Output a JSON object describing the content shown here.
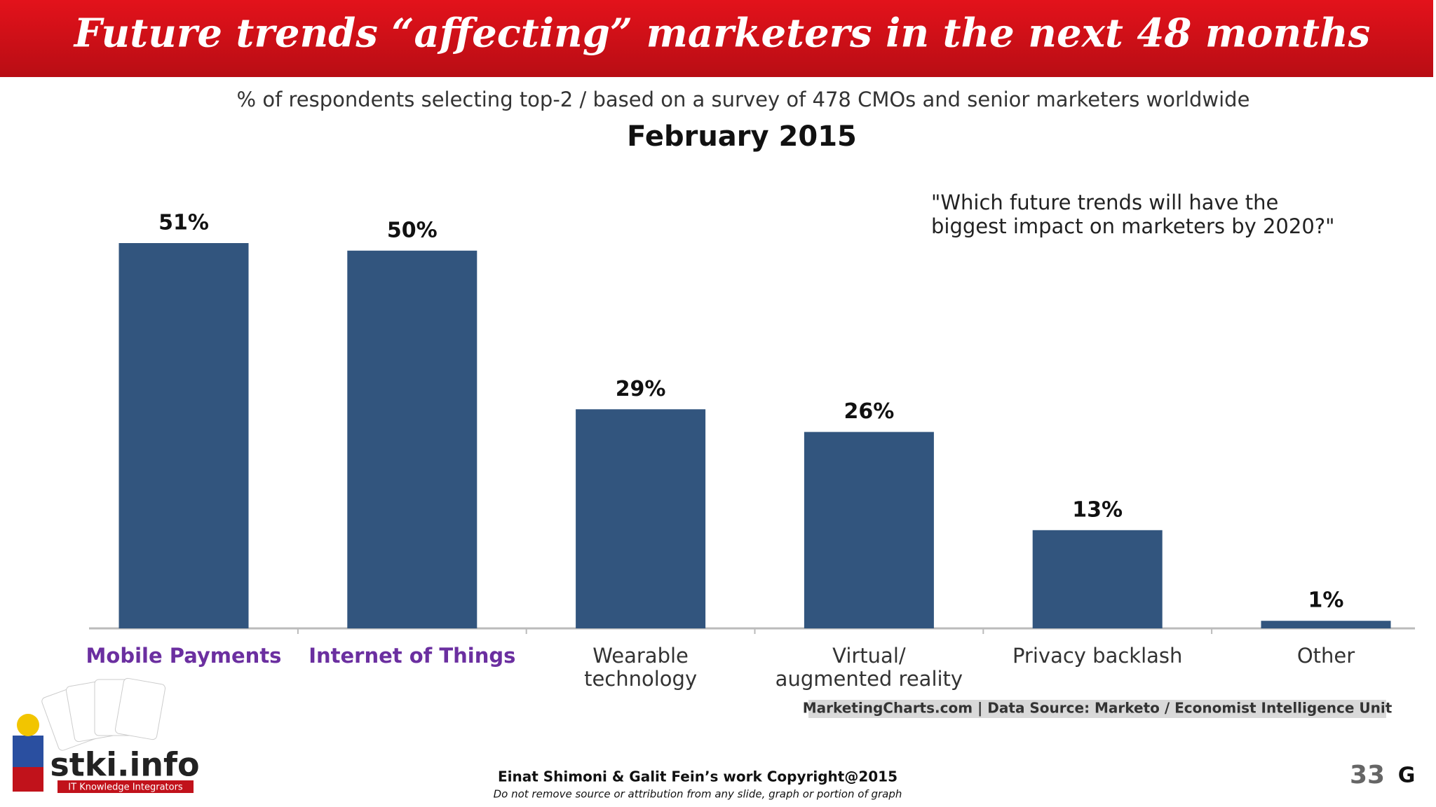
{
  "chart_data": {
    "type": "bar",
    "title": "Future trends “affecting” marketers in the next 48 months",
    "subtitle": "% of respondents selecting top-2 / based on a survey of 478 CMOs and senior marketers worldwide",
    "date_heading": "February 2015",
    "annotation": "\"Which future trends will have the biggest impact on marketers by 2020?\"",
    "categories": [
      "Mobile Payments",
      "Internet of Things",
      "Wearable technology",
      "Virtual/ augmented reality",
      "Privacy backlash",
      "Other"
    ],
    "category_label_colors": [
      "#6b2fa0",
      "#6b2fa0",
      "#333333",
      "#333333",
      "#333333",
      "#333333"
    ],
    "values": [
      51,
      50,
      29,
      26,
      13,
      1
    ],
    "value_labels": [
      "51%",
      "50%",
      "29%",
      "26%",
      "13%",
      "1%"
    ],
    "color": "#32557e",
    "source": "MarketingCharts.com | Data Source: Marketo / Economist Intelligence Unit"
  },
  "footer": {
    "credit": "Einat Shimoni & Galit Fein’s work  Copyright@2015",
    "notice": "Do not remove source or attribution from any slide, graph or portion of graph",
    "page_number": "33",
    "mark": "G",
    "logo": "stki.info",
    "logo_tagline": "IT Knowledge Integrators"
  }
}
